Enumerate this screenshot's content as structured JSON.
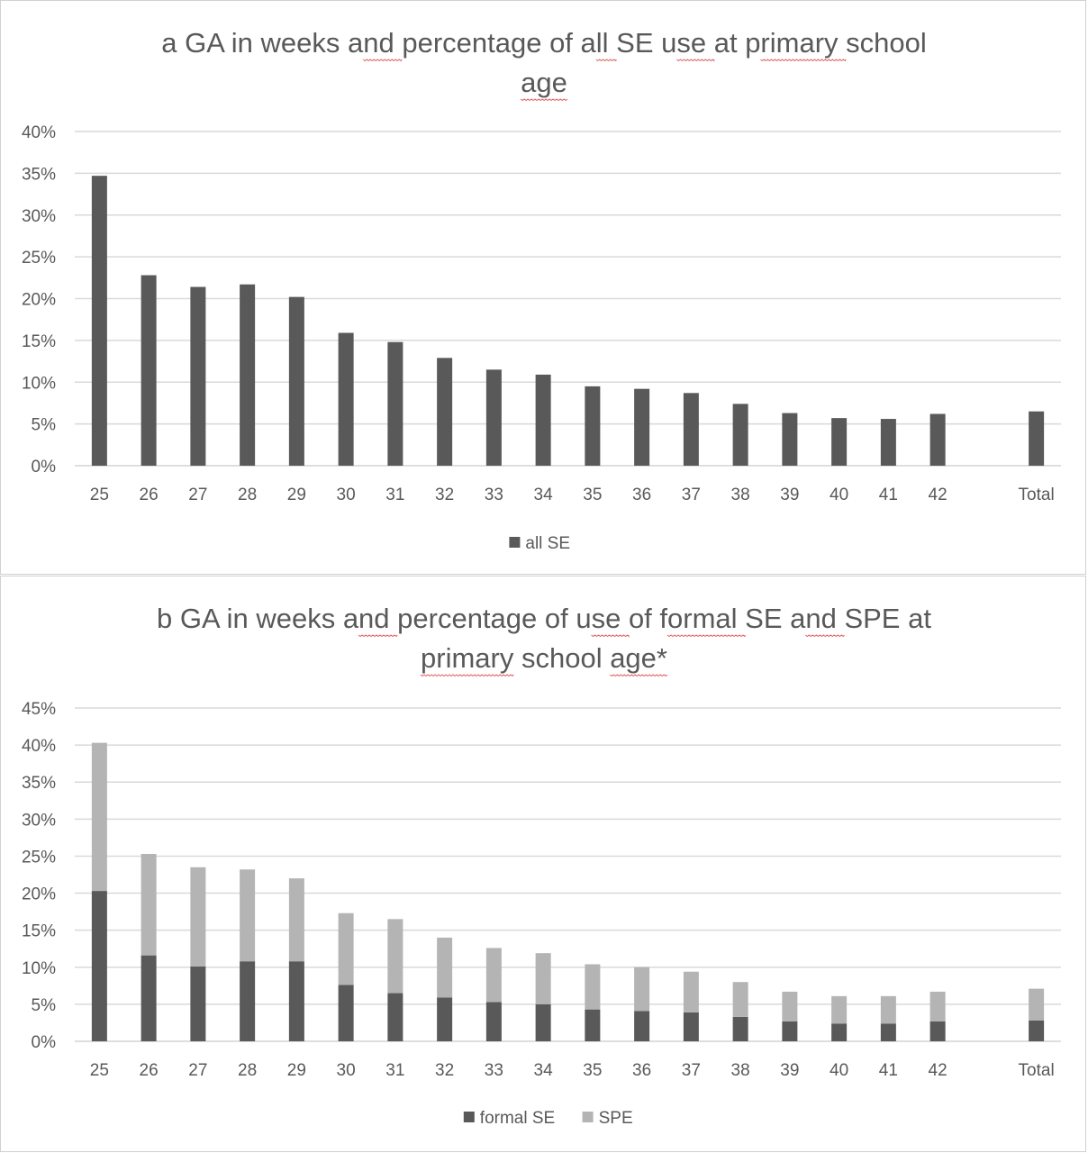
{
  "chart_data": [
    {
      "type": "bar",
      "title_lines": [
        "a  GA in weeks and percentage of all SE use at primary school",
        "age"
      ],
      "title_underlined_words": [
        "and",
        "all",
        "use",
        "primary",
        "age"
      ],
      "categories": [
        "25",
        "26",
        "27",
        "28",
        "29",
        "30",
        "31",
        "32",
        "33",
        "34",
        "35",
        "36",
        "37",
        "38",
        "39",
        "40",
        "41",
        "42",
        "",
        "Total"
      ],
      "series": [
        {
          "name": "all SE",
          "color": "#595959",
          "values": [
            34.7,
            22.8,
            21.4,
            21.7,
            20.2,
            15.9,
            14.8,
            12.9,
            11.5,
            10.9,
            9.5,
            9.2,
            8.7,
            7.4,
            6.3,
            5.7,
            5.6,
            6.2,
            null,
            6.5
          ]
        }
      ],
      "ylim": [
        0,
        40
      ],
      "yticks": [
        "0%",
        "5%",
        "10%",
        "15%",
        "20%",
        "25%",
        "30%",
        "35%",
        "40%"
      ],
      "xlabel": "",
      "ylabel": "",
      "grid": true,
      "legend_position": "bottom"
    },
    {
      "type": "bar",
      "stacked": true,
      "title_lines": [
        "b  GA in weeks and percentage of use of formal SE and SPE at",
        "primary school age*"
      ],
      "title_underlined_words": [
        "and",
        "use",
        "formal",
        "and",
        "primary",
        "age*"
      ],
      "categories": [
        "25",
        "26",
        "27",
        "28",
        "29",
        "30",
        "31",
        "32",
        "33",
        "34",
        "35",
        "36",
        "37",
        "38",
        "39",
        "40",
        "41",
        "42",
        "",
        "Total"
      ],
      "series": [
        {
          "name": "formal SE",
          "color": "#595959",
          "values": [
            20.3,
            11.6,
            10.1,
            10.8,
            10.8,
            7.6,
            6.5,
            5.9,
            5.3,
            5.0,
            4.3,
            4.1,
            3.9,
            3.3,
            2.7,
            2.4,
            2.4,
            2.7,
            null,
            2.8
          ]
        },
        {
          "name": "SPE",
          "color": "#b4b4b4",
          "values": [
            20.0,
            13.7,
            13.4,
            12.4,
            11.2,
            9.7,
            10.0,
            8.1,
            7.3,
            6.9,
            6.1,
            5.9,
            5.5,
            4.7,
            4.0,
            3.7,
            3.7,
            4.0,
            null,
            4.3
          ]
        }
      ],
      "ylim": [
        0,
        45
      ],
      "yticks": [
        "0%",
        "5%",
        "10%",
        "15%",
        "20%",
        "25%",
        "30%",
        "35%",
        "40%",
        "45%"
      ],
      "xlabel": "",
      "ylabel": "",
      "grid": true,
      "legend_position": "bottom"
    }
  ]
}
